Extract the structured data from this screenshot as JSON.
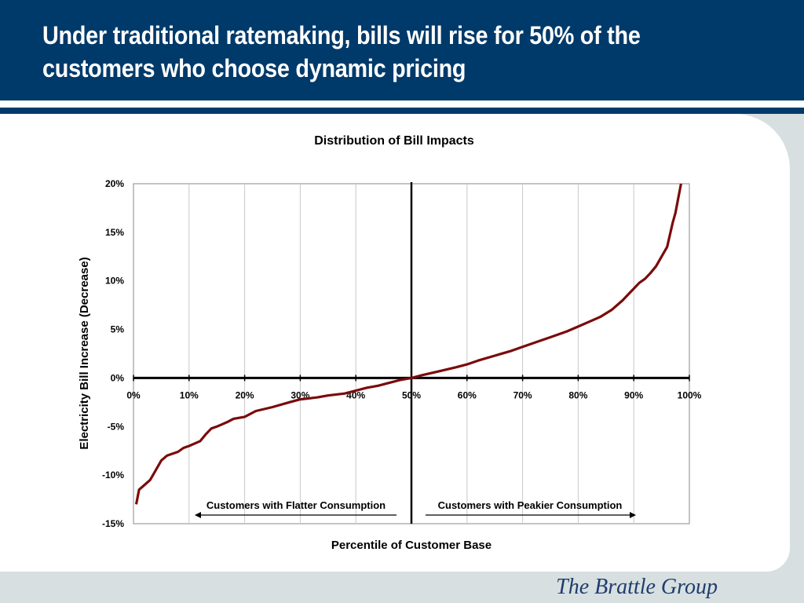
{
  "slide": {
    "title": "Under traditional ratemaking, bills will rise for 50% of the customers who choose dynamic pricing",
    "logo_text": "The Brattle Group"
  },
  "colors": {
    "header": "#003a6a",
    "curve": "#7a0b0b",
    "background": "#d7dfe0"
  },
  "chart_data": {
    "type": "line",
    "title": "Distribution of Bill Impacts",
    "xlabel": "Percentile of Customer Base",
    "ylabel": "Electricity Bill Increase (Decrease)",
    "xlim": [
      0,
      100
    ],
    "ylim": [
      -15,
      20
    ],
    "x_ticks": [
      "0%",
      "10%",
      "20%",
      "30%",
      "40%",
      "50%",
      "60%",
      "70%",
      "80%",
      "90%",
      "100%"
    ],
    "y_ticks": [
      "20%",
      "15%",
      "10%",
      "5%",
      "0%",
      "-5%",
      "-10%",
      "-15%"
    ],
    "grid": "vertical",
    "reference_line_x": 50,
    "annotations": [
      {
        "text": "Customers with Flatter Consumption",
        "direction": "left"
      },
      {
        "text": "Customers with Peakier Consumption",
        "direction": "right"
      }
    ],
    "series": [
      {
        "x": [
          0.5,
          1,
          2,
          3,
          4,
          5,
          6,
          7,
          8,
          9,
          10,
          12,
          13,
          14,
          15,
          17,
          18,
          20,
          22,
          25,
          28,
          30,
          33,
          35,
          38,
          40,
          42,
          44,
          46,
          48,
          50,
          52,
          55,
          58,
          60,
          62,
          65,
          68,
          70,
          73,
          75,
          78,
          80,
          82,
          84,
          86,
          88,
          89,
          90,
          91,
          92,
          93,
          94,
          95,
          96,
          97,
          97.5,
          98,
          98.5
        ],
        "y": [
          -13,
          -11.5,
          -11,
          -10.5,
          -9.5,
          -8.5,
          -8,
          -7.8,
          -7.6,
          -7.2,
          -7,
          -6.5,
          -5.8,
          -5.2,
          -5,
          -4.5,
          -4.2,
          -4,
          -3.4,
          -3,
          -2.5,
          -2.2,
          -2,
          -1.8,
          -1.6,
          -1.3,
          -1,
          -0.8,
          -0.5,
          -0.2,
          0,
          0.3,
          0.7,
          1.1,
          1.4,
          1.8,
          2.3,
          2.8,
          3.2,
          3.8,
          4.2,
          4.8,
          5.3,
          5.8,
          6.3,
          7,
          8,
          8.6,
          9.2,
          9.8,
          10.2,
          10.8,
          11.5,
          12.5,
          13.5,
          16,
          17,
          18.5,
          20
        ]
      }
    ]
  }
}
